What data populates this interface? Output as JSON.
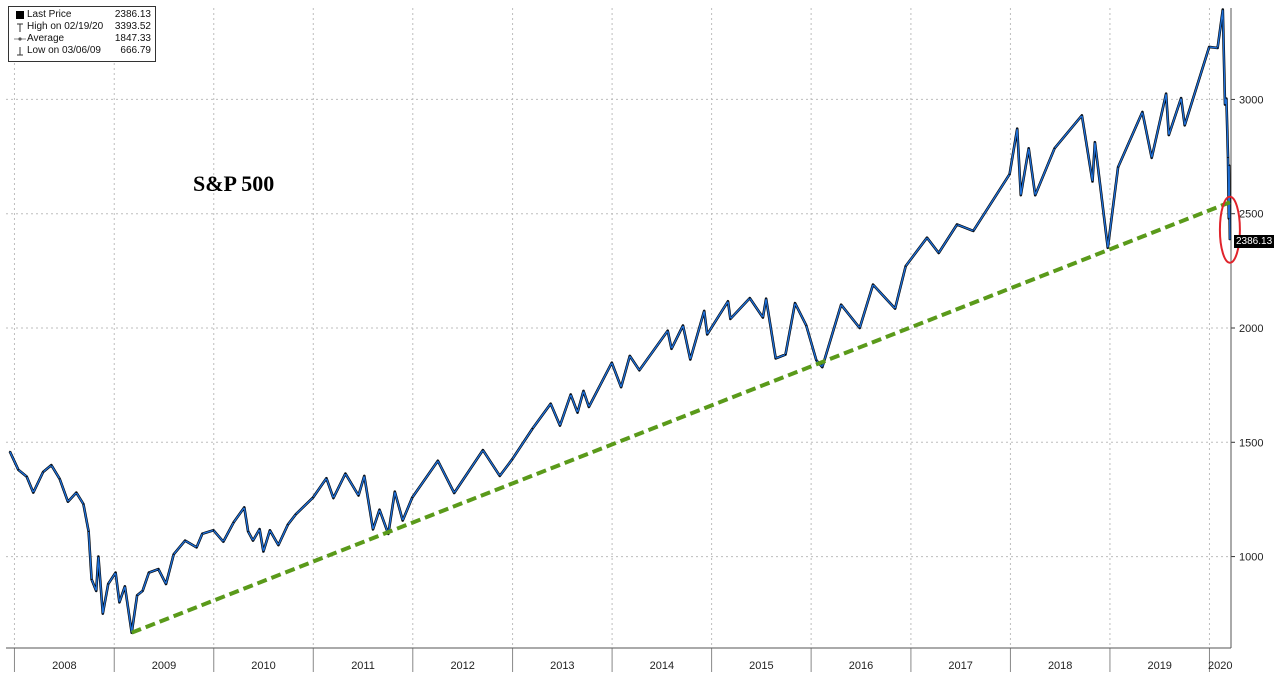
{
  "legend": {
    "items": [
      {
        "label": "Last Price",
        "value": "2386.13",
        "marker": "filled-square"
      },
      {
        "label": "High on 02/19/20",
        "value": "3393.52",
        "marker": "high-tick"
      },
      {
        "label": "Average",
        "value": "1847.33",
        "marker": "dot-line"
      },
      {
        "label": "Low on 03/06/09",
        "value": "666.79",
        "marker": "low-tick"
      }
    ]
  },
  "last_price_tag": "2386.13",
  "chart_data": {
    "type": "line",
    "title": "S&P 500",
    "xlabel": "",
    "ylabel": "",
    "ylim": [
      600,
      3400
    ],
    "y_ticks": [
      1000,
      1500,
      2000,
      2500,
      3000
    ],
    "x_ticks": [
      "2008",
      "2009",
      "2010",
      "2011",
      "2012",
      "2013",
      "2014",
      "2015",
      "2016",
      "2017",
      "2018",
      "2019",
      "2020"
    ],
    "grid": true,
    "y_axis_side": "right",
    "colors": {
      "price": "#1f6fd6",
      "price_shadow": "#000000",
      "trend": "#5a9a1a",
      "highlight": "#e0232b"
    },
    "series": [
      {
        "name": "Last Price",
        "points": [
          [
            "2007-12-15",
            1460
          ],
          [
            "2008-01-15",
            1380
          ],
          [
            "2008-02-15",
            1350
          ],
          [
            "2008-03-10",
            1280
          ],
          [
            "2008-04-15",
            1370
          ],
          [
            "2008-05-15",
            1400
          ],
          [
            "2008-06-15",
            1340
          ],
          [
            "2008-07-15",
            1240
          ],
          [
            "2008-08-15",
            1280
          ],
          [
            "2008-09-10",
            1230
          ],
          [
            "2008-09-29",
            1110
          ],
          [
            "2008-10-10",
            900
          ],
          [
            "2008-10-27",
            850
          ],
          [
            "2008-11-04",
            1000
          ],
          [
            "2008-11-20",
            750
          ],
          [
            "2008-12-10",
            880
          ],
          [
            "2009-01-06",
            930
          ],
          [
            "2009-01-20",
            800
          ],
          [
            "2009-02-09",
            870
          ],
          [
            "2009-03-06",
            667
          ],
          [
            "2009-03-26",
            830
          ],
          [
            "2009-04-15",
            850
          ],
          [
            "2009-05-08",
            930
          ],
          [
            "2009-06-12",
            945
          ],
          [
            "2009-07-10",
            880
          ],
          [
            "2009-08-07",
            1010
          ],
          [
            "2009-09-18",
            1070
          ],
          [
            "2009-10-30",
            1040
          ],
          [
            "2009-11-20",
            1100
          ],
          [
            "2009-12-31",
            1115
          ],
          [
            "2010-02-05",
            1065
          ],
          [
            "2010-03-15",
            1150
          ],
          [
            "2010-04-23",
            1215
          ],
          [
            "2010-05-07",
            1110
          ],
          [
            "2010-05-25",
            1070
          ],
          [
            "2010-06-18",
            1120
          ],
          [
            "2010-07-02",
            1022
          ],
          [
            "2010-07-26",
            1115
          ],
          [
            "2010-08-26",
            1050
          ],
          [
            "2010-09-30",
            1140
          ],
          [
            "2010-10-29",
            1185
          ],
          [
            "2010-12-31",
            1258
          ],
          [
            "2011-02-18",
            1343
          ],
          [
            "2011-03-16",
            1256
          ],
          [
            "2011-04-29",
            1363
          ],
          [
            "2011-06-16",
            1267
          ],
          [
            "2011-07-07",
            1353
          ],
          [
            "2011-08-08",
            1119
          ],
          [
            "2011-09-01",
            1205
          ],
          [
            "2011-10-03",
            1099
          ],
          [
            "2011-10-27",
            1284
          ],
          [
            "2011-11-25",
            1158
          ],
          [
            "2011-12-30",
            1258
          ],
          [
            "2012-04-02",
            1419
          ],
          [
            "2012-06-01",
            1278
          ],
          [
            "2012-09-14",
            1466
          ],
          [
            "2012-11-15",
            1353
          ],
          [
            "2012-12-31",
            1426
          ],
          [
            "2013-03-15",
            1560
          ],
          [
            "2013-05-21",
            1669
          ],
          [
            "2013-06-24",
            1573
          ],
          [
            "2013-08-02",
            1709
          ],
          [
            "2013-08-27",
            1630
          ],
          [
            "2013-09-18",
            1725
          ],
          [
            "2013-10-08",
            1655
          ],
          [
            "2013-12-31",
            1848
          ],
          [
            "2014-02-03",
            1741
          ],
          [
            "2014-03-07",
            1878
          ],
          [
            "2014-04-11",
            1815
          ],
          [
            "2014-07-24",
            1988
          ],
          [
            "2014-08-07",
            1909
          ],
          [
            "2014-09-18",
            2011
          ],
          [
            "2014-10-15",
            1862
          ],
          [
            "2014-12-05",
            2075
          ],
          [
            "2014-12-16",
            1972
          ],
          [
            "2015-03-02",
            2117
          ],
          [
            "2015-03-11",
            2040
          ],
          [
            "2015-05-21",
            2131
          ],
          [
            "2015-07-08",
            2046
          ],
          [
            "2015-07-20",
            2128
          ],
          [
            "2015-08-24",
            1867
          ],
          [
            "2015-09-29",
            1884
          ],
          [
            "2015-11-03",
            2109
          ],
          [
            "2015-12-14",
            2012
          ],
          [
            "2016-01-20",
            1859
          ],
          [
            "2016-02-11",
            1829
          ],
          [
            "2016-04-20",
            2102
          ],
          [
            "2016-06-27",
            2000
          ],
          [
            "2016-08-15",
            2190
          ],
          [
            "2016-11-04",
            2085
          ],
          [
            "2016-12-13",
            2271
          ],
          [
            "2017-03-01",
            2395
          ],
          [
            "2017-04-13",
            2328
          ],
          [
            "2017-06-19",
            2453
          ],
          [
            "2017-08-18",
            2425
          ],
          [
            "2017-12-29",
            2673
          ],
          [
            "2018-01-26",
            2872
          ],
          [
            "2018-02-08",
            2581
          ],
          [
            "2018-03-09",
            2786
          ],
          [
            "2018-04-02",
            2581
          ],
          [
            "2018-06-12",
            2786
          ],
          [
            "2018-09-20",
            2930
          ],
          [
            "2018-10-29",
            2641
          ],
          [
            "2018-11-07",
            2813
          ],
          [
            "2018-12-24",
            2351
          ],
          [
            "2019-01-31",
            2704
          ],
          [
            "2019-04-30",
            2945
          ],
          [
            "2019-06-03",
            2744
          ],
          [
            "2019-07-26",
            3025
          ],
          [
            "2019-08-05",
            2844
          ],
          [
            "2019-09-19",
            3006
          ],
          [
            "2019-10-02",
            2887
          ],
          [
            "2019-12-31",
            3230
          ],
          [
            "2020-01-31",
            3225
          ],
          [
            "2020-02-19",
            3393
          ],
          [
            "2020-02-27",
            2978
          ],
          [
            "2020-03-03",
            3003
          ],
          [
            "2020-03-09",
            2746
          ],
          [
            "2020-03-12",
            2480
          ],
          [
            "2020-03-13",
            2711
          ],
          [
            "2020-03-16",
            2386
          ]
        ]
      }
    ],
    "trendline": {
      "style": "dashed",
      "points": [
        [
          "2009-03-06",
          667
        ],
        [
          "2020-03-16",
          2550
        ]
      ]
    },
    "highlight": {
      "shape": "ellipse",
      "at": [
        "2020-03-16",
        2430
      ]
    }
  }
}
